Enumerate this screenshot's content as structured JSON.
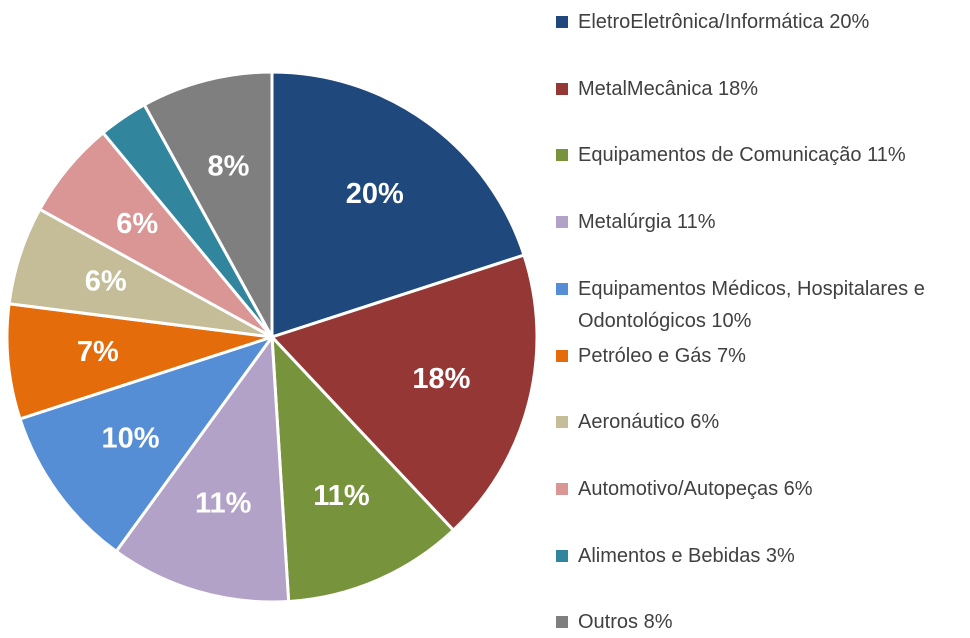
{
  "chart_data": {
    "type": "pie",
    "categories": [
      "EletroEletrônica/Informática 20%",
      "MetalMecânica 18%",
      "Equipamentos de Comunicação 11%",
      "Metalúrgia 11%",
      "Equipamentos Médicos, Hospitalares e Odontológicos 10%",
      "Petróleo e Gás 7%",
      "Aeronáutico 6%",
      "Automotivo/Autopeças 6%",
      "Alimentos e Bebidas 3%",
      "Outros 8%"
    ],
    "values": [
      20,
      18,
      11,
      11,
      10,
      7,
      6,
      6,
      3,
      8
    ],
    "value_labels": [
      "20%",
      "18%",
      "11%",
      "11%",
      "10%",
      "7%",
      "6%",
      "6%",
      null,
      "8%"
    ],
    "colors": [
      "#1f497d",
      "#953735",
      "#77933c",
      "#b3a2c7",
      "#558ed5",
      "#e46c0a",
      "#c4bd97",
      "#d99694",
      "#31859c",
      "#7f7f7f"
    ],
    "legend": "right"
  }
}
